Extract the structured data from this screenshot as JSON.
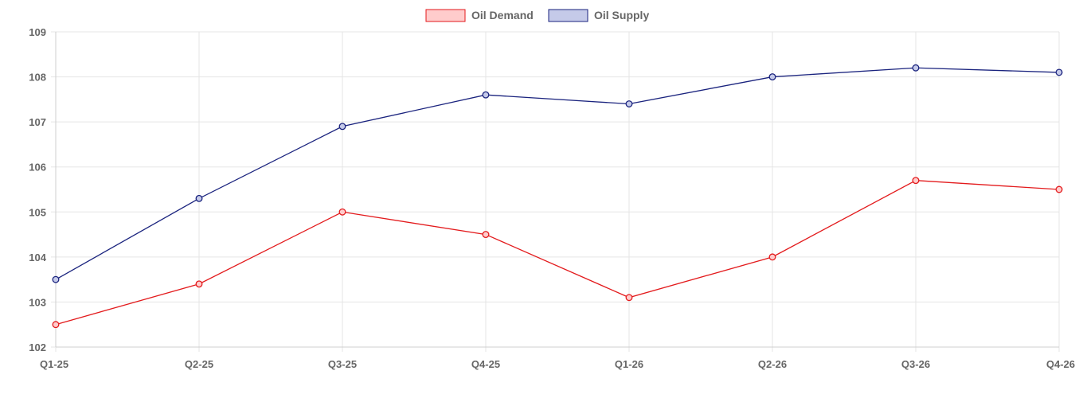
{
  "chart_data": {
    "type": "line",
    "categories": [
      "Q1-25",
      "Q2-25",
      "Q3-25",
      "Q4-25",
      "Q1-26",
      "Q2-26",
      "Q3-26",
      "Q4-26"
    ],
    "series": [
      {
        "name": "Oil Demand",
        "values": [
          102.5,
          103.4,
          105.0,
          104.5,
          103.1,
          104.0,
          105.7,
          105.5
        ],
        "color": "#e31a1c",
        "fill": "#ffcccc"
      },
      {
        "name": "Oil Supply",
        "values": [
          103.5,
          105.3,
          106.9,
          107.6,
          107.4,
          108.0,
          108.2,
          108.1
        ],
        "color": "#1a237e",
        "fill": "#c5cae9"
      }
    ],
    "ylim": [
      102,
      109
    ],
    "yticks": [
      102,
      103,
      104,
      105,
      106,
      107,
      108,
      109
    ],
    "grid": true,
    "legend": "top-center"
  }
}
